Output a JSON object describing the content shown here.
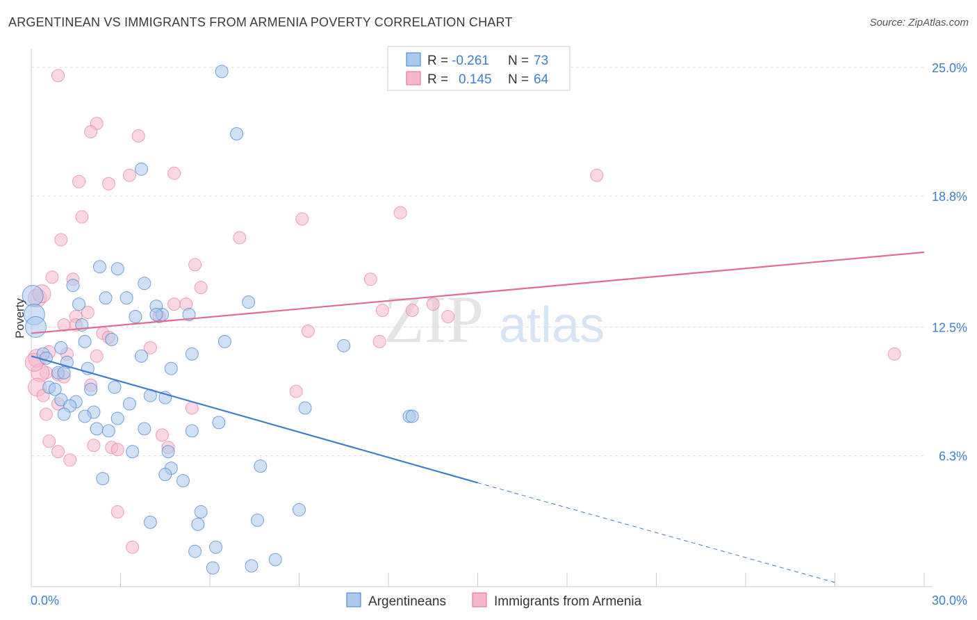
{
  "title": "ARGENTINEAN VS IMMIGRANTS FROM ARMENIA POVERTY CORRELATION CHART",
  "source": "Source: ZipAtlas.com",
  "watermark": {
    "zip": "ZIP",
    "atlas": "atlas"
  },
  "colors": {
    "blue": "#3f7dd1",
    "blue_fill": "#a9c9ee",
    "pink": "#e46a96",
    "pink_fill": "#f6b6cb",
    "grid": "#dddddd",
    "tick_text": "#3f7dd1"
  },
  "chart_data": {
    "type": "scatter",
    "title": "ARGENTINEAN VS IMMIGRANTS FROM ARMENIA POVERTY CORRELATION CHART",
    "xlabel": "",
    "ylabel": "Poverty",
    "xlim": [
      0,
      30
    ],
    "ylim": [
      0,
      25.9
    ],
    "x_tick_labels": [
      "0.0%",
      "30.0%"
    ],
    "y_ticks": [
      6.3,
      12.5,
      18.8,
      25.0
    ],
    "y_tick_labels": [
      "6.3%",
      "12.5%",
      "18.8%",
      "25.0%"
    ],
    "grid": "horizontal dashed",
    "legend_placement": "top-center",
    "legend": [
      {
        "r_label": "R =",
        "r_value": "-0.261",
        "n_label": "N =",
        "n_value": "73"
      },
      {
        "r_label": "R =",
        "r_value": "0.145",
        "n_label": "N =",
        "n_value": "64"
      }
    ],
    "bottom_legend": [
      "Argentineans",
      "Immigrants from Armenia"
    ],
    "series": [
      {
        "name": "Argentineans",
        "color": "#3f7dd1",
        "trend": {
          "x0": 0,
          "y0": 11.1,
          "x1": 15,
          "y1": 5.0,
          "dashed_to_x": 27,
          "dashed_to_y": 0.2
        },
        "points": [
          [
            6.4,
            24.8
          ],
          [
            6.9,
            21.8
          ],
          [
            3.7,
            20.1
          ],
          [
            2.3,
            15.4
          ],
          [
            2.9,
            15.3
          ],
          [
            1.4,
            14.5
          ],
          [
            3.8,
            14.6
          ],
          [
            2.5,
            13.9
          ],
          [
            3.2,
            13.9
          ],
          [
            7.3,
            13.7
          ],
          [
            1.6,
            13.6
          ],
          [
            4.2,
            13.5
          ],
          [
            4.4,
            13.1
          ],
          [
            5.3,
            13.1
          ],
          [
            3.5,
            13.0
          ],
          [
            1.7,
            12.6
          ],
          [
            1.8,
            11.8
          ],
          [
            2.7,
            11.9
          ],
          [
            6.5,
            11.8
          ],
          [
            10.5,
            11.6
          ],
          [
            1.0,
            11.5
          ],
          [
            0.4,
            11.2
          ],
          [
            0.5,
            11.0
          ],
          [
            3.7,
            11.1
          ],
          [
            5.4,
            11.2
          ],
          [
            1.2,
            10.8
          ],
          [
            1.9,
            10.5
          ],
          [
            4.7,
            10.5
          ],
          [
            0.9,
            10.3
          ],
          [
            1.1,
            10.3
          ],
          [
            0.6,
            9.6
          ],
          [
            0.8,
            9.5
          ],
          [
            2.0,
            9.5
          ],
          [
            2.8,
            9.6
          ],
          [
            4.0,
            9.2
          ],
          [
            4.5,
            9.1
          ],
          [
            1.0,
            9.0
          ],
          [
            1.5,
            8.9
          ],
          [
            3.3,
            8.8
          ],
          [
            1.3,
            8.7
          ],
          [
            9.2,
            8.6
          ],
          [
            2.1,
            8.4
          ],
          [
            1.1,
            8.3
          ],
          [
            1.8,
            8.2
          ],
          [
            2.9,
            8.1
          ],
          [
            6.3,
            7.9
          ],
          [
            12.7,
            8.2
          ],
          [
            12.8,
            8.2
          ],
          [
            2.2,
            7.6
          ],
          [
            2.6,
            7.5
          ],
          [
            3.8,
            7.6
          ],
          [
            5.4,
            7.5
          ],
          [
            3.4,
            6.5
          ],
          [
            4.6,
            6.5
          ],
          [
            7.7,
            5.8
          ],
          [
            4.7,
            5.7
          ],
          [
            4.5,
            5.4
          ],
          [
            2.4,
            5.2
          ],
          [
            5.1,
            5.1
          ],
          [
            5.7,
            3.6
          ],
          [
            9.0,
            3.7
          ],
          [
            4.0,
            3.1
          ],
          [
            5.6,
            3.0
          ],
          [
            7.6,
            3.2
          ],
          [
            6.2,
            1.9
          ],
          [
            5.5,
            1.7
          ],
          [
            8.2,
            1.3
          ],
          [
            6.1,
            0.9
          ],
          [
            7.4,
            1.0
          ],
          [
            0.05,
            14.0
          ],
          [
            0.1,
            13.1
          ],
          [
            0.15,
            12.5
          ],
          [
            4.2,
            13.1
          ]
        ]
      },
      {
        "name": "Immigrants from Armenia",
        "color": "#e46a96",
        "trend": {
          "x0": 0,
          "y0": 12.2,
          "x1": 30,
          "y1": 16.1
        },
        "points": [
          [
            0.9,
            24.6
          ],
          [
            2.2,
            22.3
          ],
          [
            2.0,
            21.9
          ],
          [
            3.6,
            21.7
          ],
          [
            1.6,
            19.5
          ],
          [
            3.3,
            19.8
          ],
          [
            2.6,
            19.4
          ],
          [
            4.8,
            19.9
          ],
          [
            19.0,
            19.8
          ],
          [
            1.7,
            17.8
          ],
          [
            9.1,
            17.7
          ],
          [
            12.4,
            18.0
          ],
          [
            1.0,
            16.7
          ],
          [
            7.0,
            16.8
          ],
          [
            5.5,
            15.5
          ],
          [
            0.7,
            14.9
          ],
          [
            1.4,
            14.8
          ],
          [
            11.4,
            14.8
          ],
          [
            5.7,
            14.4
          ],
          [
            0.2,
            13.9
          ],
          [
            4.8,
            13.6
          ],
          [
            5.2,
            13.6
          ],
          [
            13.5,
            13.6
          ],
          [
            1.9,
            13.2
          ],
          [
            11.8,
            13.3
          ],
          [
            12.8,
            13.3
          ],
          [
            1.5,
            13.0
          ],
          [
            14.0,
            13.0
          ],
          [
            4.3,
            13.0
          ],
          [
            1.1,
            12.6
          ],
          [
            1.5,
            12.6
          ],
          [
            2.4,
            12.2
          ],
          [
            9.3,
            12.3
          ],
          [
            2.6,
            12.0
          ],
          [
            11.7,
            11.8
          ],
          [
            4.0,
            11.5
          ],
          [
            0.6,
            11.3
          ],
          [
            1.2,
            11.2
          ],
          [
            2.2,
            11.1
          ],
          [
            29.0,
            11.2
          ],
          [
            0.2,
            11.0
          ],
          [
            0.5,
            10.3
          ],
          [
            0.3,
            10.3
          ],
          [
            0.9,
            10.2
          ],
          [
            1.1,
            10.1
          ],
          [
            0.2,
            9.6
          ],
          [
            2.0,
            9.7
          ],
          [
            8.9,
            9.4
          ],
          [
            0.4,
            9.2
          ],
          [
            0.9,
            8.8
          ],
          [
            5.4,
            8.6
          ],
          [
            0.5,
            8.3
          ],
          [
            4.4,
            7.3
          ],
          [
            0.6,
            7.0
          ],
          [
            2.1,
            6.8
          ],
          [
            2.7,
            6.7
          ],
          [
            4.6,
            6.7
          ],
          [
            2.9,
            6.6
          ],
          [
            0.9,
            6.5
          ],
          [
            1.3,
            6.1
          ],
          [
            2.9,
            3.6
          ],
          [
            3.4,
            1.9
          ],
          [
            0.1,
            10.8
          ],
          [
            0.35,
            14.1
          ]
        ]
      }
    ]
  }
}
